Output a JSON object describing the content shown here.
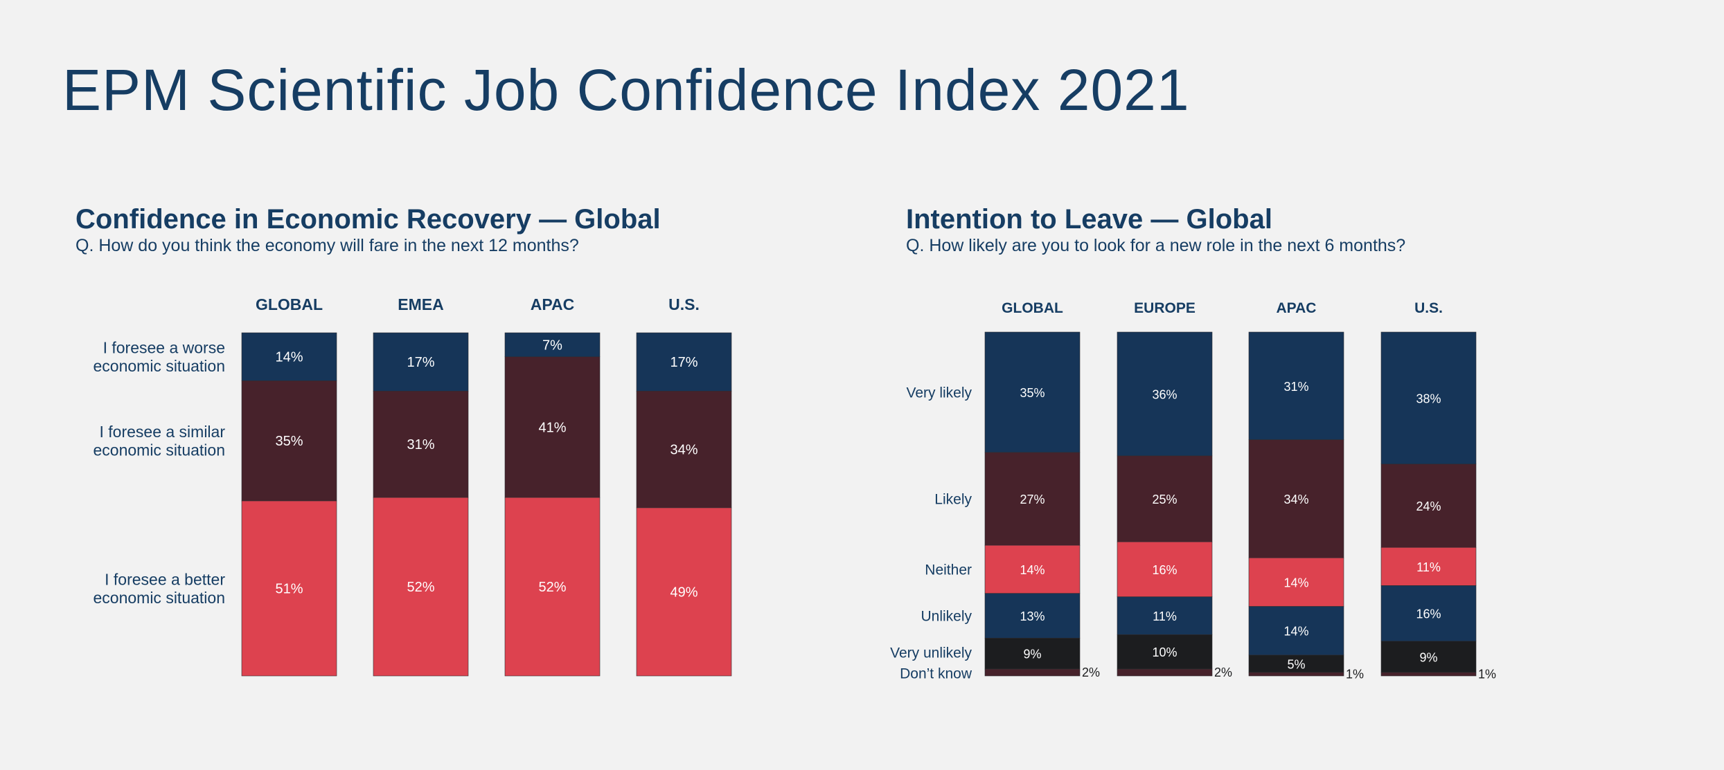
{
  "page_title": "EPM Scientific Job Confidence Index 2021",
  "colors": {
    "navy": "#163558",
    "maroon": "#47222b",
    "red": "#dd424f",
    "black": "#1c1d1f",
    "text": "#163d63"
  },
  "chart_data": [
    {
      "type": "bar",
      "stacked": true,
      "title": "Confidence in Economic Recovery — Global",
      "subtitle": "Q. How do you think the economy will fare in the next 12 months?",
      "categories": [
        "GLOBAL",
        "EMEA",
        "APAC",
        "U.S."
      ],
      "series": [
        {
          "name": "I foresee a worse economic situation",
          "label_lines": [
            "I foresee a worse",
            "economic situation"
          ],
          "color": "#163558",
          "values": [
            14,
            17,
            7,
            17
          ],
          "labels": [
            "14%",
            "17%",
            "7%",
            "17%"
          ]
        },
        {
          "name": "I foresee a similar economic situation",
          "label_lines": [
            "I foresee a similar",
            "economic situation"
          ],
          "color": "#47222b",
          "values": [
            35,
            31,
            41,
            34
          ],
          "labels": [
            "35%",
            "31%",
            "41%",
            "34%"
          ]
        },
        {
          "name": "I foresee a better economic situation",
          "label_lines": [
            "I foresee a better",
            "economic situation"
          ],
          "color": "#dd424f",
          "values": [
            51,
            52,
            52,
            49
          ],
          "labels": [
            "51%",
            "52%",
            "52%",
            "49%"
          ]
        }
      ]
    },
    {
      "type": "bar",
      "stacked": true,
      "title": "Intention to Leave — Global",
      "subtitle": "Q. How likely are you to look for a new role in the next 6 months?",
      "categories": [
        "GLOBAL",
        "EUROPE",
        "APAC",
        "U.S."
      ],
      "series": [
        {
          "name": "Very likely",
          "label_lines": [
            "Very likely"
          ],
          "color": "#163558",
          "values": [
            35,
            36,
            31,
            38
          ],
          "labels": [
            "35%",
            "36%",
            "31%",
            "38%"
          ]
        },
        {
          "name": "Likely",
          "label_lines": [
            "Likely"
          ],
          "color": "#47222b",
          "values": [
            27,
            25,
            34,
            24
          ],
          "labels": [
            "27%",
            "25%",
            "34%",
            "24%"
          ]
        },
        {
          "name": "Neither",
          "label_lines": [
            "Neither"
          ],
          "color": "#dd424f",
          "values": [
            14,
            16,
            14,
            11
          ],
          "labels": [
            "14%",
            "16%",
            "14%",
            "11%"
          ]
        },
        {
          "name": "Unlikely",
          "label_lines": [
            "Unlikely"
          ],
          "color": "#163558",
          "values": [
            13,
            11,
            14,
            16
          ],
          "labels": [
            "13%",
            "11%",
            "14%",
            "16%"
          ]
        },
        {
          "name": "Very unlikely",
          "label_lines": [
            "Very unlikely"
          ],
          "color": "#1c1d1f",
          "values": [
            9,
            10,
            5,
            9
          ],
          "labels": [
            "9%",
            "10%",
            "5%",
            "9%"
          ]
        },
        {
          "name": "Don’t know",
          "label_lines": [
            "Don’t know"
          ],
          "color": "#47222b",
          "values": [
            2,
            2,
            1,
            1
          ],
          "labels": [
            "2%",
            "2%",
            "1%",
            "1%"
          ],
          "label_outside": true
        }
      ]
    }
  ]
}
